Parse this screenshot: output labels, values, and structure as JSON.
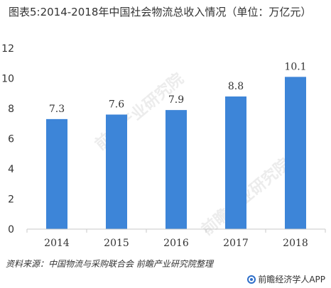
{
  "title": "图表5:2014-2018年中国社会物流总收入情况（单位：万亿元）",
  "source": "资料来源：中国物流与采购联合会 前瞻产业研究院整理",
  "brand": "前瞻经济学人APP",
  "watermark": "前瞻产业研究院",
  "colors": {
    "bar": "#3d85d8",
    "axis": "#c8c8c8",
    "text": "#333333"
  },
  "chart_data": {
    "type": "bar",
    "categories": [
      "2014",
      "2015",
      "2016",
      "2017",
      "2018"
    ],
    "values": [
      7.3,
      7.6,
      7.9,
      8.8,
      10.1
    ],
    "data_labels": [
      "7.3",
      "7.6",
      "7.9",
      "8.8",
      "10.1"
    ],
    "yticks": [
      "0",
      "2",
      "4",
      "6",
      "8",
      "10",
      "12"
    ],
    "ylim": [
      0,
      12
    ],
    "grid": false,
    "legend": "none"
  }
}
